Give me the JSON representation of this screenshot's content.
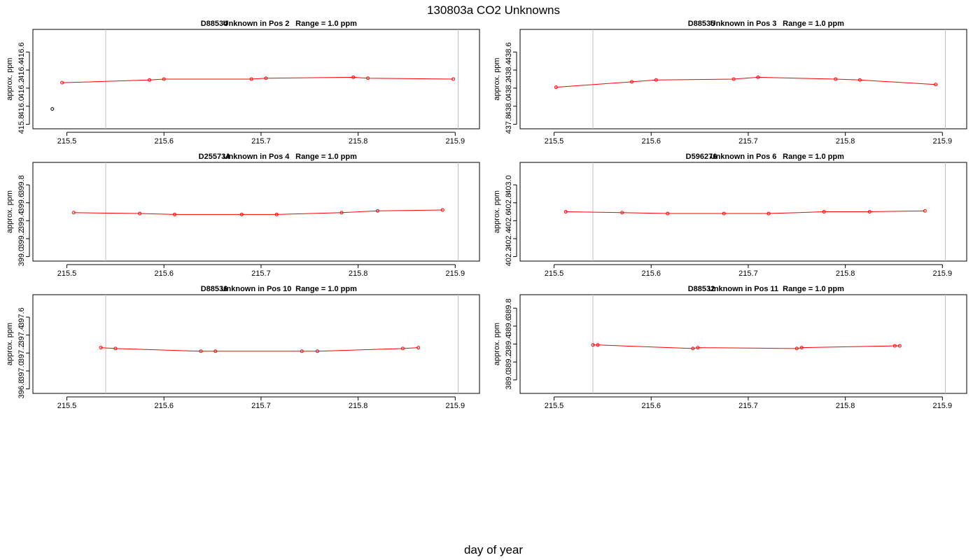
{
  "page": {
    "title": "130803a  CO2 Unknowns",
    "xlabel": "day of year"
  },
  "colors": {
    "series": "#ff0000",
    "marker_extra": "#000000",
    "vline": "#bebebe",
    "frame": "#000000"
  },
  "chart_data": [
    {
      "type": "line",
      "title_parts": [
        "D88534",
        "Unknown in Pos 2",
        "Range = 1.0 ppm"
      ],
      "ylabel": "approx. ppm",
      "xlim": [
        215.465,
        215.925
      ],
      "ylim": [
        415.75,
        416.85
      ],
      "xticks": [
        "215.5",
        "215.6",
        "215.7",
        "215.8",
        "215.9"
      ],
      "yticks": [
        "415.8",
        "416.0",
        "416.2",
        "416.4",
        "416.6"
      ],
      "vlines": [
        215.54,
        215.903
      ],
      "x": [
        215.495,
        215.585,
        215.6,
        215.69,
        215.705,
        215.795,
        215.81,
        215.898
      ],
      "y": [
        416.26,
        416.29,
        416.3,
        416.3,
        416.31,
        416.32,
        416.31,
        416.3
      ],
      "extra_points": [
        {
          "x": 215.485,
          "y": 415.97
        }
      ]
    },
    {
      "type": "line",
      "title_parts": [
        "D88535",
        "Unknown in Pos 3",
        "Range = 1.0 ppm"
      ],
      "ylabel": "approx. ppm",
      "xlim": [
        215.465,
        215.925
      ],
      "ylim": [
        437.75,
        438.85
      ],
      "xticks": [
        "215.5",
        "215.6",
        "215.7",
        "215.8",
        "215.9"
      ],
      "yticks": [
        "437.8",
        "438.0",
        "438.2",
        "438.4",
        "438.6"
      ],
      "vlines": [
        215.54,
        215.903
      ],
      "x": [
        215.502,
        215.58,
        215.605,
        215.685,
        215.71,
        215.79,
        215.815,
        215.893
      ],
      "y": [
        438.21,
        438.27,
        438.29,
        438.3,
        438.32,
        438.3,
        438.29,
        438.24
      ],
      "extra_points": []
    },
    {
      "type": "line",
      "title_parts": [
        "D255734",
        "Unknown in Pos 4",
        "Range = 1.0 ppm"
      ],
      "ylabel": "approx. ppm",
      "xlim": [
        215.465,
        215.925
      ],
      "ylim": [
        398.95,
        400.05
      ],
      "xticks": [
        "215.5",
        "215.6",
        "215.7",
        "215.8",
        "215.9"
      ],
      "yticks": [
        "399.0",
        "399.2",
        "399.4",
        "399.6",
        "399.8"
      ],
      "vlines": [
        215.54,
        215.903
      ],
      "x": [
        215.507,
        215.575,
        215.611,
        215.68,
        215.716,
        215.783,
        215.82,
        215.887
      ],
      "y": [
        399.49,
        399.48,
        399.47,
        399.47,
        399.47,
        399.49,
        399.51,
        399.52
      ],
      "extra_points": []
    },
    {
      "type": "line",
      "title_parts": [
        "D596276",
        "Unknown in Pos 6",
        "Range = 1.0 ppm"
      ],
      "ylabel": "approx. ppm",
      "xlim": [
        215.465,
        215.925
      ],
      "ylim": [
        402.15,
        403.25
      ],
      "xticks": [
        "215.5",
        "215.6",
        "215.7",
        "215.8",
        "215.9"
      ],
      "yticks": [
        "402.2",
        "402.4",
        "402.6",
        "402.8",
        "403.0"
      ],
      "vlines": [
        215.54,
        215.903
      ],
      "x": [
        215.512,
        215.57,
        215.617,
        215.675,
        215.721,
        215.778,
        215.825,
        215.882
      ],
      "y": [
        402.7,
        402.69,
        402.68,
        402.68,
        402.68,
        402.7,
        402.7,
        402.71
      ],
      "extra_points": []
    },
    {
      "type": "line",
      "title_parts": [
        "D88536",
        "Unknown in Pos 10",
        "Range = 1.0 ppm"
      ],
      "ylabel": "approx. ppm",
      "xlim": [
        215.465,
        215.925
      ],
      "ylim": [
        396.75,
        397.85
      ],
      "xticks": [
        "215.5",
        "215.6",
        "215.7",
        "215.8",
        "215.9"
      ],
      "yticks": [
        "396.8",
        "397.0",
        "397.2",
        "397.4",
        "397.6"
      ],
      "vlines": [
        215.54,
        215.903
      ],
      "x": [
        215.535,
        215.55,
        215.638,
        215.653,
        215.742,
        215.758,
        215.846,
        215.862
      ],
      "y": [
        397.26,
        397.25,
        397.22,
        397.22,
        397.22,
        397.22,
        397.25,
        397.26
      ],
      "extra_points": []
    },
    {
      "type": "line",
      "title_parts": [
        "D88532",
        "Unknown in Pos 11",
        "Range = 1.0 ppm"
      ],
      "ylabel": "approx. ppm",
      "xlim": [
        215.465,
        215.925
      ],
      "ylim": [
        388.85,
        389.95
      ],
      "xticks": [
        "215.5",
        "215.6",
        "215.7",
        "215.8",
        "215.9"
      ],
      "yticks": [
        "389.0",
        "389.2",
        "389.4",
        "389.6",
        "389.8"
      ],
      "vlines": [
        215.54,
        215.903
      ],
      "x": [
        215.54,
        215.545,
        215.643,
        215.648,
        215.75,
        215.755,
        215.851,
        215.856
      ],
      "y": [
        389.39,
        389.39,
        389.35,
        389.36,
        389.35,
        389.36,
        389.38,
        389.38
      ],
      "extra_points": []
    }
  ]
}
